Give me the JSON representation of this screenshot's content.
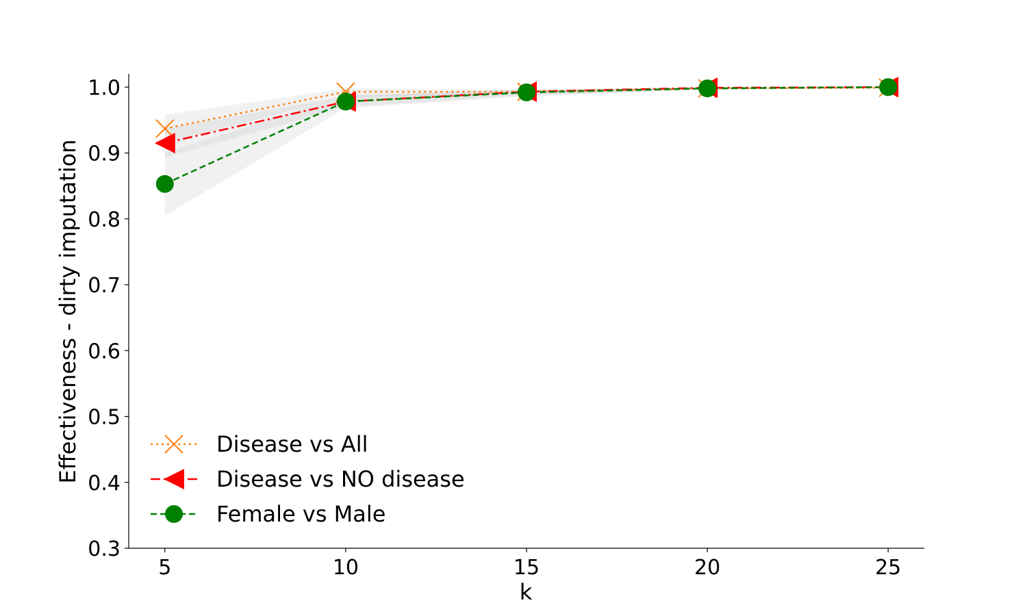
{
  "chart_data": {
    "type": "line",
    "xlabel": "k",
    "ylabel": "Effectiveness - dirty imputation",
    "x": [
      5,
      10,
      15,
      20,
      25
    ],
    "xticks": [
      "5",
      "10",
      "15",
      "20",
      "25"
    ],
    "yticks": [
      "0.3",
      "0.4",
      "0.5",
      "0.6",
      "0.7",
      "0.8",
      "0.9",
      "1.0"
    ],
    "xlim": [
      4,
      26
    ],
    "ylim": [
      0.3,
      1.02
    ],
    "legend_position": "lower-left",
    "grid": false,
    "series": [
      {
        "name": "Disease vs All",
        "values": [
          0.937,
          0.993,
          0.993,
          0.998,
          0.999
        ],
        "ci_low": [
          0.915,
          0.985,
          0.988,
          0.996,
          0.998
        ],
        "ci_high": [
          0.958,
          0.998,
          0.996,
          0.999,
          1.0
        ],
        "color": "#ff7f0e",
        "marker": "x",
        "linestyle": "dotted"
      },
      {
        "name": "Disease vs NO disease",
        "values": [
          0.915,
          0.978,
          0.993,
          0.999,
          1.0
        ],
        "ci_low": [
          0.893,
          0.97,
          0.988,
          0.997,
          0.999
        ],
        "ci_high": [
          0.937,
          0.986,
          0.996,
          1.0,
          1.0
        ],
        "color": "#ff0000",
        "marker": "triangle-left",
        "linestyle": "dashdot"
      },
      {
        "name": "Female vs Male",
        "values": [
          0.853,
          0.978,
          0.992,
          0.998,
          1.0
        ],
        "ci_low": [
          0.805,
          0.968,
          0.986,
          0.996,
          0.999
        ],
        "ci_high": [
          0.9,
          0.988,
          0.996,
          0.999,
          1.0
        ],
        "color": "#008000",
        "marker": "circle",
        "linestyle": "dashed"
      }
    ]
  }
}
